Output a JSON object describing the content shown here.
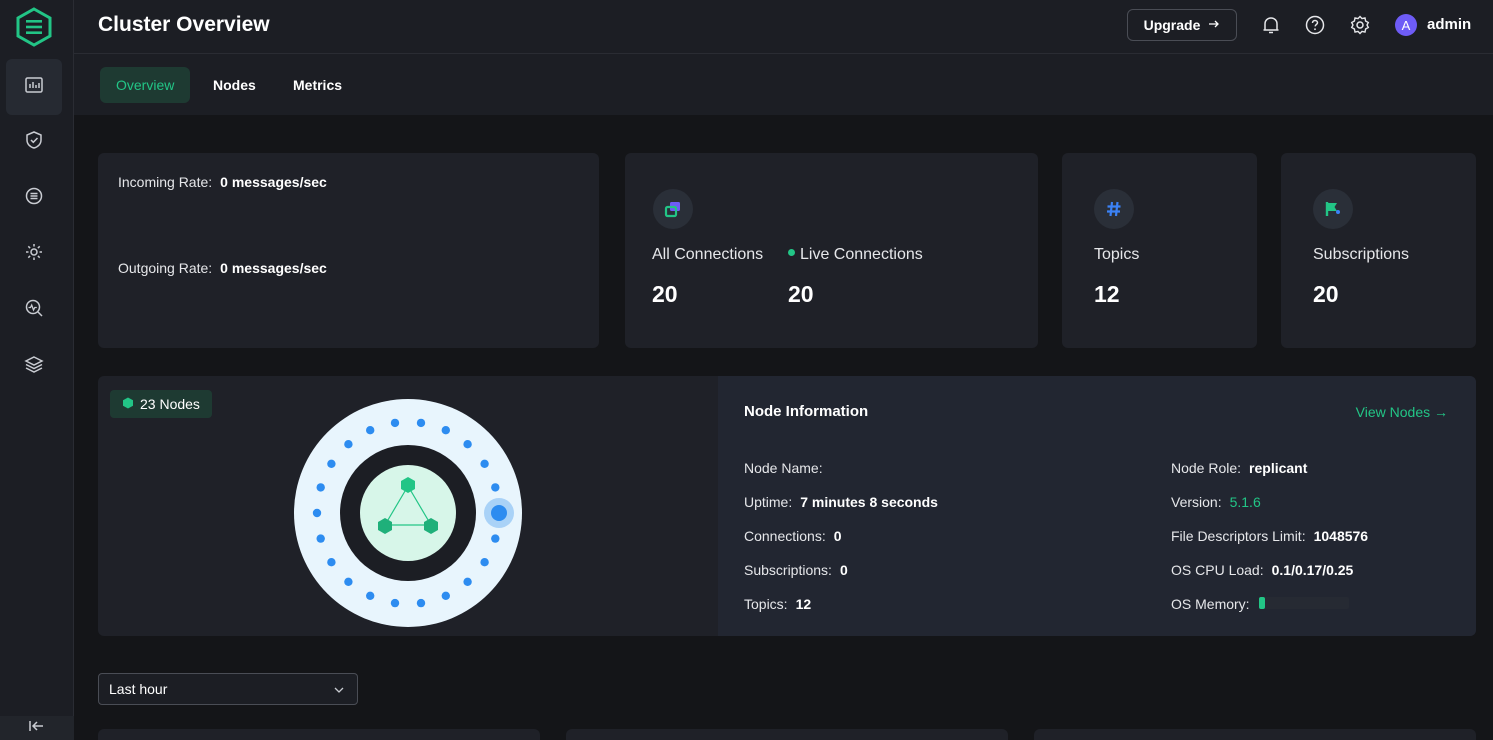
{
  "header": {
    "title": "Cluster Overview",
    "upgrade_label": "Upgrade",
    "username": "admin",
    "avatar_initial": "A"
  },
  "sidebar": {
    "items": [
      {
        "icon": "dashboard-icon",
        "active": true
      },
      {
        "icon": "shield-icon",
        "active": false
      },
      {
        "icon": "data-integration-icon",
        "active": false
      },
      {
        "icon": "management-gear-icon",
        "active": false
      },
      {
        "icon": "diagnose-icon",
        "active": false
      },
      {
        "icon": "layers-icon",
        "active": false
      }
    ]
  },
  "tabs": [
    {
      "label": "Overview",
      "active": true
    },
    {
      "label": "Nodes",
      "active": false
    },
    {
      "label": "Metrics",
      "active": false
    }
  ],
  "rates": {
    "incoming_label": "Incoming Rate:",
    "incoming_value": "0 messages/sec",
    "outgoing_label": "Outgoing Rate:",
    "outgoing_value": "0 messages/sec"
  },
  "stats": {
    "all_connections_label": "All Connections",
    "all_connections_value": "20",
    "live_connections_label": "Live Connections",
    "live_connections_value": "20",
    "topics_label": "Topics",
    "topics_value": "12",
    "subscriptions_label": "Subscriptions",
    "subscriptions_value": "20"
  },
  "cluster": {
    "nodes_badge": "23 Nodes"
  },
  "node_info": {
    "title": "Node Information",
    "view_nodes_label": "View Nodes",
    "node_name_label": "Node Name:",
    "node_name_value": "",
    "uptime_label": "Uptime:",
    "uptime_value": "7 minutes 8 seconds",
    "connections_label": "Connections:",
    "connections_value": "0",
    "subscriptions_label": "Subscriptions:",
    "subscriptions_value": "0",
    "topics_label": "Topics:",
    "topics_value": "12",
    "node_role_label": "Node Role:",
    "node_role_value": "replicant",
    "version_label": "Version:",
    "version_value": "5.1.6",
    "fd_limit_label": "File Descriptors Limit:",
    "fd_limit_value": "1048576",
    "cpu_load_label": "OS CPU Load:",
    "cpu_load_value": "0.1/0.17/0.25",
    "memory_label": "OS Memory:",
    "memory_fraction": 0.07
  },
  "time_range": {
    "selected": "Last hour"
  },
  "colors": {
    "accent": "#22c586",
    "node_blue": "#2d8cf0",
    "background": "#141518",
    "card": "#1f2128"
  }
}
